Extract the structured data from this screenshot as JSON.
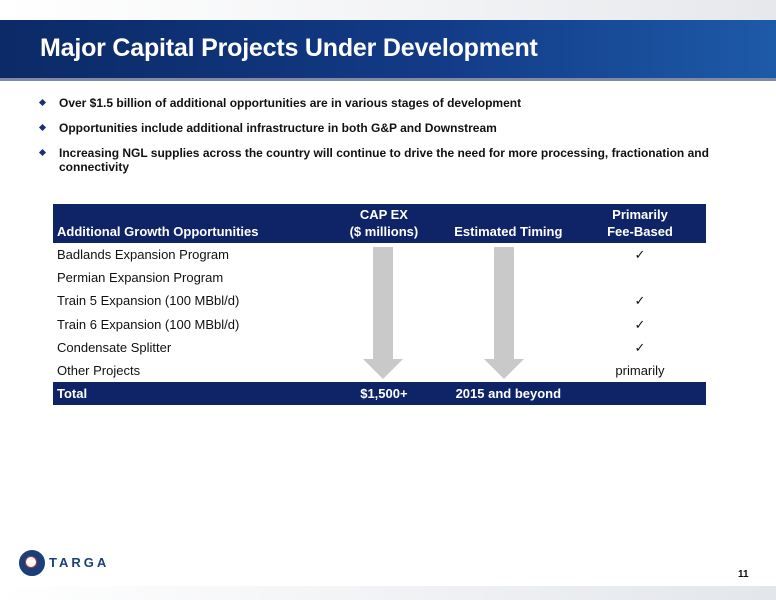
{
  "slide": {
    "title": "Major Capital Projects Under Development",
    "page_number": "11"
  },
  "bullets": [
    "Over $1.5 billion of additional opportunities are in various stages of development",
    "Opportunities include additional infrastructure in both G&P and Downstream",
    "Increasing NGL supplies across the country will continue to drive the need for more processing, fractionation and connectivity"
  ],
  "table": {
    "headers": {
      "opportunity": "Additional Growth Opportunities",
      "capex_line1": "CAP EX",
      "capex_line2": "($ millions)",
      "timing": "Estimated Timing",
      "fee_line1": "Primarily",
      "fee_line2": "Fee-Based"
    },
    "rows": [
      {
        "name": "Badlands Expansion Program",
        "fee_based": "✓"
      },
      {
        "name": "Permian Expansion Program",
        "fee_based": ""
      },
      {
        "name": "Train 5 Expansion (100 MBbl/d)",
        "fee_based": "✓"
      },
      {
        "name": "Train 6 Expansion (100 MBbl/d)",
        "fee_based": "✓"
      },
      {
        "name": "Condensate Splitter",
        "fee_based": "✓"
      },
      {
        "name": "Other Projects",
        "fee_based": "primarily"
      }
    ],
    "total": {
      "label": "Total",
      "capex": "$1,500+",
      "timing": "2015 and beyond"
    }
  },
  "logo": {
    "wordmark": "TARGA",
    "colors": {
      "brand": "#1a3f7a",
      "accent": "#c0392b"
    }
  },
  "colors": {
    "header_navy": "#0f2466",
    "title_bar": "#123a86",
    "arrow_gray": "#c9c9c9"
  }
}
